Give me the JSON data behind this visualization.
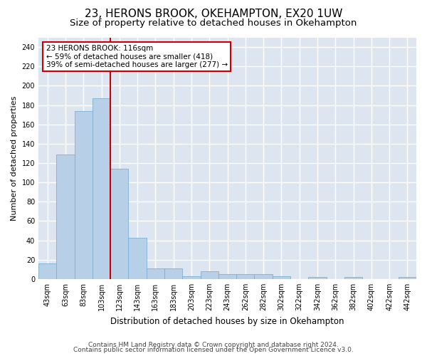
{
  "title1": "23, HERONS BROOK, OKEHAMPTON, EX20 1UW",
  "title2": "Size of property relative to detached houses in Okehampton",
  "xlabel": "Distribution of detached houses by size in Okehampton",
  "ylabel": "Number of detached properties",
  "categories": [
    "43sqm",
    "63sqm",
    "83sqm",
    "103sqm",
    "123sqm",
    "143sqm",
    "163sqm",
    "183sqm",
    "203sqm",
    "223sqm",
    "243sqm",
    "262sqm",
    "282sqm",
    "302sqm",
    "322sqm",
    "342sqm",
    "362sqm",
    "382sqm",
    "402sqm",
    "422sqm",
    "442sqm"
  ],
  "values": [
    16,
    129,
    174,
    187,
    114,
    43,
    11,
    11,
    3,
    8,
    5,
    5,
    5,
    3,
    0,
    2,
    0,
    2,
    0,
    0,
    2
  ],
  "bar_color": "#b8cfe8",
  "bar_edge_color": "#7bafd4",
  "vline_color": "#cc0000",
  "annotation_line1": "23 HERONS BROOK: 116sqm",
  "annotation_line2": "← 59% of detached houses are smaller (418)",
  "annotation_line3": "39% of semi-detached houses are larger (277) →",
  "annotation_box_edgecolor": "#cc0000",
  "annotation_box_facecolor": "white",
  "ylim": [
    0,
    250
  ],
  "yticks": [
    0,
    20,
    40,
    60,
    80,
    100,
    120,
    140,
    160,
    180,
    200,
    220,
    240
  ],
  "background_color": "#dde6f0",
  "grid_color": "white",
  "footer1": "Contains HM Land Registry data © Crown copyright and database right 2024.",
  "footer2": "Contains public sector information licensed under the Open Government Licence v3.0.",
  "title1_fontsize": 11,
  "title2_fontsize": 9.5,
  "xlabel_fontsize": 8.5,
  "ylabel_fontsize": 8,
  "tick_fontsize": 7,
  "annot_fontsize": 7.5,
  "footer_fontsize": 6.5
}
